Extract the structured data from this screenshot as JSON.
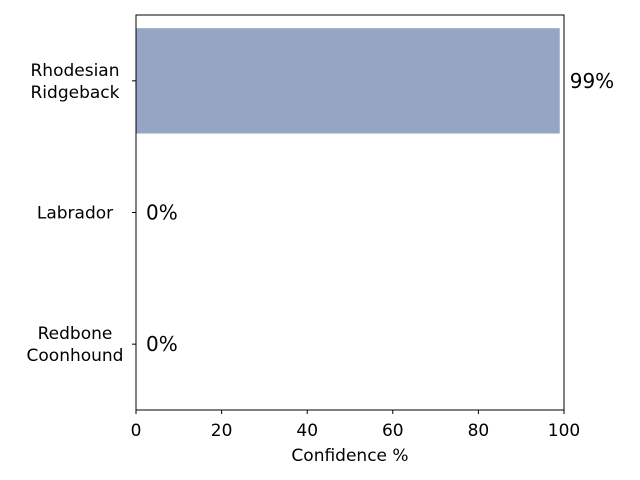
{
  "chart_data": {
    "type": "bar",
    "orientation": "horizontal",
    "categories": [
      [
        "Rhodesian",
        "Ridgeback"
      ],
      [
        "Labrador"
      ],
      [
        "Redbone",
        "Coonhound"
      ]
    ],
    "values": [
      99,
      0,
      0
    ],
    "data_labels": [
      "99%",
      "0%",
      "0%"
    ],
    "xlabel": "Confidence %",
    "ylabel": "",
    "title": "",
    "xlim": [
      0,
      100
    ],
    "xticks": [
      0,
      20,
      40,
      60,
      80,
      100
    ],
    "grid": false,
    "bar_color": "#95a5c4"
  }
}
